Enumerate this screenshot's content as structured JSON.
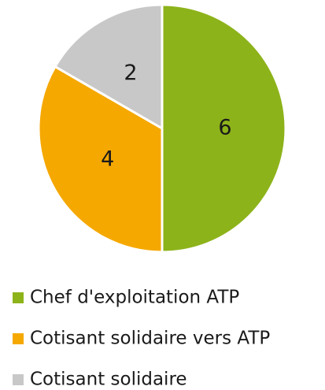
{
  "chart_data": {
    "type": "pie",
    "categories": [
      "Chef d'exploitation ATP",
      "Cotisant solidaire vers ATP",
      "Cotisant solidaire"
    ],
    "values": [
      6,
      4,
      2
    ],
    "colors": [
      "#8db31a",
      "#f5a800",
      "#c8c8c8"
    ],
    "legend": "bottom"
  }
}
